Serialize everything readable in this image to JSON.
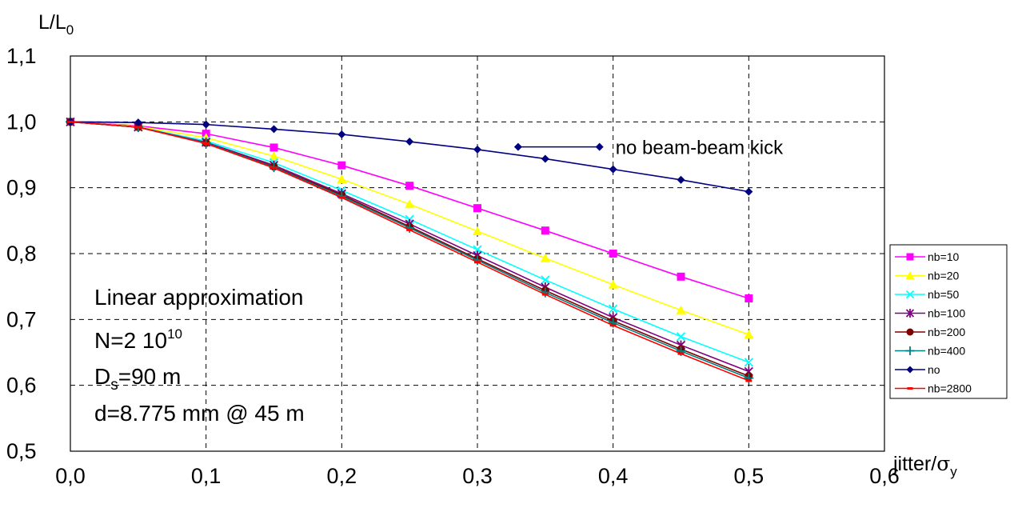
{
  "chart_data": {
    "type": "line",
    "ylabel": "L/L",
    "ylabel_sub": "0",
    "xlabel": "jitter/",
    "xlabel_sigma": "σ",
    "xlabel_sub": "y",
    "xlim": [
      0.0,
      0.6
    ],
    "ylim": [
      0.5,
      1.1
    ],
    "x_ticks": [
      "0,0",
      "0,1",
      "0,2",
      "0,3",
      "0,4",
      "0,5",
      "0,6"
    ],
    "y_ticks": [
      "0,5",
      "0,6",
      "0,7",
      "0,8",
      "0,9",
      "1,0",
      "1,1"
    ],
    "grid": true,
    "legend_position": "right",
    "x": [
      0.0,
      0.05,
      0.1,
      0.15,
      0.2,
      0.25,
      0.3,
      0.35,
      0.4,
      0.45,
      0.5
    ],
    "series": [
      {
        "name": "nb=10",
        "color": "#ff00ff",
        "marker": "square",
        "values": [
          1.0,
          0.994,
          0.982,
          0.961,
          0.934,
          0.903,
          0.869,
          0.835,
          0.8,
          0.765,
          0.732
        ]
      },
      {
        "name": "nb=20",
        "color": "#ffff00",
        "marker": "triangle",
        "values": [
          1.0,
          0.993,
          0.976,
          0.948,
          0.913,
          0.875,
          0.834,
          0.793,
          0.753,
          0.714,
          0.677
        ]
      },
      {
        "name": "nb=50",
        "color": "#00ffff",
        "marker": "x",
        "values": [
          1.0,
          0.992,
          0.971,
          0.938,
          0.896,
          0.852,
          0.806,
          0.76,
          0.716,
          0.674,
          0.635
        ]
      },
      {
        "name": "nb=100",
        "color": "#800080",
        "marker": "star",
        "values": [
          1.0,
          0.992,
          0.969,
          0.934,
          0.891,
          0.845,
          0.797,
          0.749,
          0.703,
          0.661,
          0.621
        ]
      },
      {
        "name": "nb=200",
        "color": "#800000",
        "marker": "circle",
        "values": [
          1.0,
          0.992,
          0.968,
          0.932,
          0.889,
          0.841,
          0.792,
          0.744,
          0.698,
          0.655,
          0.614
        ]
      },
      {
        "name": "nb=400",
        "color": "#008080",
        "marker": "plus",
        "values": [
          1.0,
          0.992,
          0.968,
          0.931,
          0.887,
          0.839,
          0.79,
          0.741,
          0.695,
          0.652,
          0.611
        ]
      },
      {
        "name": "no",
        "color": "#000080",
        "marker": "diamond",
        "values": [
          1.0,
          0.999,
          0.996,
          0.989,
          0.981,
          0.97,
          0.958,
          0.944,
          0.928,
          0.912,
          0.894
        ]
      },
      {
        "name": "nb=2800",
        "color": "#ff0000",
        "marker": "dash",
        "values": [
          1.0,
          0.992,
          0.967,
          0.93,
          0.885,
          0.836,
          0.787,
          0.738,
          0.691,
          0.648,
          0.607
        ]
      }
    ],
    "inline_legend": {
      "text": "no beam-beam kick",
      "x": [
        0.33,
        0.39
      ],
      "y": 0.962,
      "color": "#000080"
    },
    "annotations": {
      "line1": "Linear approximation",
      "line2_main": "N=2 10",
      "line2_sup": "10",
      "line3_main": "D",
      "line3_sub": "s",
      "line3_rest": "=90 m",
      "line4": "d=8.775 mm @ 45 m"
    }
  }
}
